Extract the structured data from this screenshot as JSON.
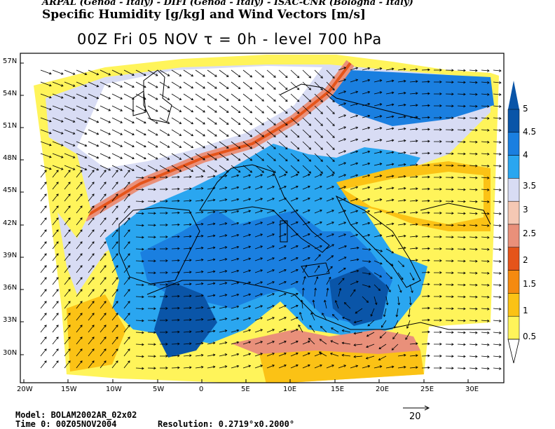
{
  "header": {
    "credits": "ARPAL (Genoa - Italy)  -  DIFI (Genoa - Italy)  -  ISAC-CNR (Bologna - Italy)",
    "title": "Specific Humidity [g/kg] and Wind Vectors [m/s]",
    "subtitle": "00Z Fri 05 NOV  τ = 0h  -  level 700 hPa"
  },
  "map": {
    "lat_labels": [
      "57N",
      "54N",
      "51N",
      "48N",
      "45N",
      "42N",
      "39N",
      "36N",
      "33N",
      "30N"
    ],
    "lon_labels": [
      "20W",
      "15W",
      "10W",
      "5W",
      "0",
      "5E",
      "10E",
      "15E",
      "20E",
      "25E",
      "30E"
    ],
    "lat_range": [
      27.5,
      58.0
    ],
    "lon_range": [
      -20.0,
      33.5
    ]
  },
  "colorbar": {
    "labels": [
      "5",
      "4.5",
      "4",
      "3.5",
      "3",
      "2.5",
      "2",
      "1.5",
      "1",
      "0.5"
    ],
    "colors": [
      "#0a55a8",
      "#1a7fe0",
      "#2aa6f0",
      "#d8dcf4",
      "#f5c8b4",
      "#e9907a",
      "#e5541a",
      "#f58a10",
      "#fbc215",
      "#fff45a"
    ]
  },
  "legend": {
    "reference_vector": "20"
  },
  "footer": {
    "model": "Model: BOLAM2002AR_02x02",
    "time": "Time 0: 00Z05NOV2004",
    "resolution": "Resolution: 0.2719°x0.2000°"
  }
}
